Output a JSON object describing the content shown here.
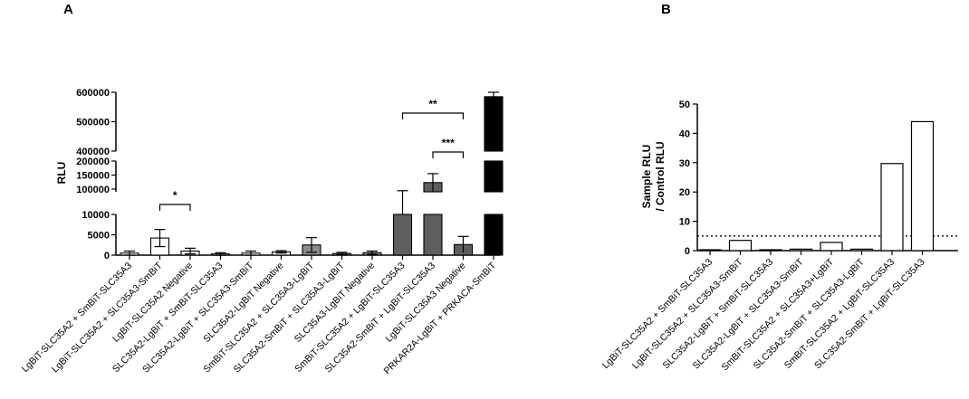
{
  "chart_data": [
    {
      "panel": "A",
      "type": "bar",
      "ylabel": "RLU",
      "y_axis_segments": [
        {
          "range": [
            0,
            10000
          ],
          "ticks": [
            "0",
            "5000",
            "10000"
          ]
        },
        {
          "range": [
            90000,
            200000
          ],
          "ticks": [
            "100000",
            "150000",
            "200000"
          ]
        },
        {
          "range": [
            400000,
            600000
          ],
          "ticks": [
            "400000",
            "500000",
            "600000"
          ]
        }
      ],
      "categories": [
        "LgBiT-SLC35A2 + SmBiT-SLC35A3",
        "LgBiT-SLC35A2 + SLC35A3-SmBiT",
        "LgBiT-SLC35A2 Negative",
        "SLC35A2-LgBiT + SmBiT-SLC35A3",
        "SLC35A2-LgBiT + SLC35A3-SmBiT",
        "SLC35A2-LgBiT Negative",
        "SmBiT-SLC35A2 + SLC35A3-LgBiT",
        "SLC35A2-SmBiT + SLC35A3-LgBiT",
        "SLC35A3-LgBiT Negative",
        "SmBiT-SLC35A2 + LgBiT-SLC35A3",
        "SLC35A2-SmBiT + LgBiT-SLC35A3",
        "LgBiT-SLC35A3 Negative",
        "PRKAR2A-LgBiT + PRKACA-SmBiT"
      ],
      "values": [
        500,
        4200,
        1000,
        300,
        500,
        800,
        2500,
        400,
        600,
        90000,
        123000,
        2600,
        585000
      ],
      "errors": [
        500,
        2100,
        700,
        300,
        500,
        300,
        1800,
        300,
        400,
        4000,
        32000,
        2000,
        15000
      ],
      "fill_groups": [
        "white",
        "white",
        "white",
        "white",
        "white",
        "white",
        "gray",
        "gray",
        "gray",
        "darkgray",
        "darkgray",
        "darkgray",
        "black"
      ],
      "colors": {
        "white": "#ffffff",
        "gray": "#8c8c8c",
        "darkgray": "#5e5e5e",
        "black": "#000000"
      },
      "significance": [
        {
          "from": 1,
          "to": 2,
          "label": "*"
        },
        {
          "from": 9,
          "to": 11,
          "label": "**"
        },
        {
          "from": 10,
          "to": 11,
          "label": "***"
        }
      ]
    },
    {
      "panel": "B",
      "type": "bar",
      "ylabel_lines": [
        "Sample RLU",
        "/ Control RLU"
      ],
      "ylim": [
        0,
        50
      ],
      "yticks": [
        "0",
        "10",
        "20",
        "30",
        "40",
        "50"
      ],
      "categories": [
        "LgBiT-SLC35A2 + SmBiT-SLC35A3",
        "LgBiT-SLC35A2 + SLC35A3-SmBiT",
        "SLC35A2-LgBiT + SmBiT-SLC35A3",
        "SLC35A2-LgBiT + SLC35A3-SmBiT",
        "SmBiT-SLC35A2 + SLC35A3+LgBiT",
        "SLC35A2-SmBiT + SLC35A3-LgBiT",
        "SmBiT-SLC35A2 + LgBiT-SLC35A3",
        "SLC35A2-SmBiT + LgBiT-SLC35A3"
      ],
      "values": [
        0.3,
        3.5,
        0.3,
        0.5,
        2.8,
        0.5,
        29.7,
        44.0
      ],
      "threshold": 5
    }
  ]
}
